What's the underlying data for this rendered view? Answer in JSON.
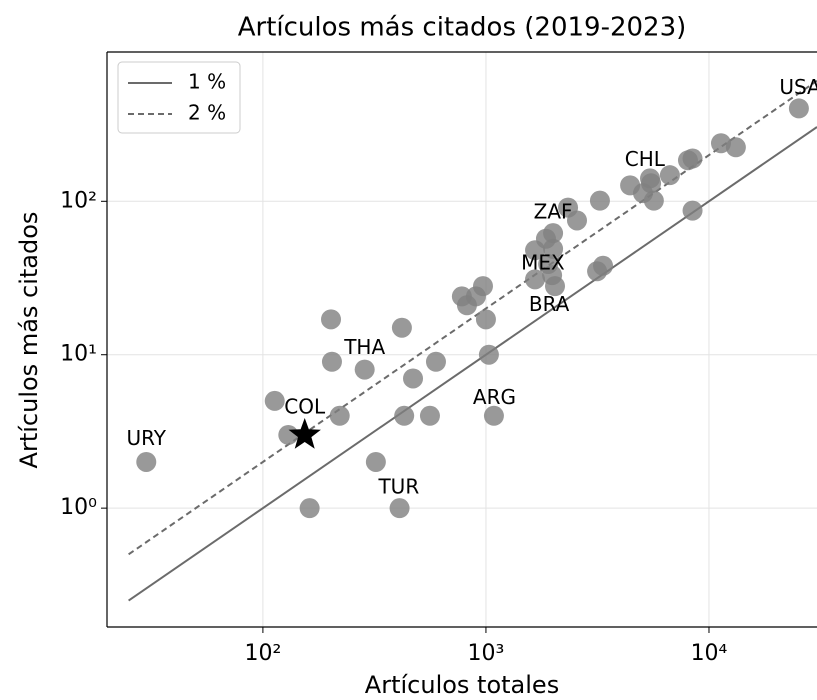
{
  "chart_data": {
    "type": "scatter",
    "title": "Artículos más citados (2019-2023)",
    "xlabel": "Artículos totales",
    "ylabel": "Artículos más citados",
    "xscale": "log",
    "yscale": "log",
    "xlim": [
      20,
      30500
    ],
    "ylim": [
      0.168,
      940
    ],
    "xticks": [
      {
        "value": 100,
        "label": "10²"
      },
      {
        "value": 1000,
        "label": "10³"
      },
      {
        "value": 10000,
        "label": "10⁴"
      }
    ],
    "yticks": [
      {
        "value": 1,
        "label": "10⁰"
      },
      {
        "value": 10,
        "label": "10¹"
      },
      {
        "value": 100,
        "label": "10²"
      }
    ],
    "grid": true,
    "legend": "upper left",
    "series": [
      {
        "name": "1 %",
        "type": "line",
        "dash": "solid",
        "color": "#6b6b6b",
        "x": [
          25,
          30500
        ],
        "values": [
          0.25,
          305
        ]
      },
      {
        "name": "2 %",
        "type": "line",
        "dash": "dashed",
        "color": "#6b6b6b",
        "x": [
          25,
          30500
        ],
        "values": [
          0.5,
          610
        ]
      }
    ],
    "points": {
      "color": "#808080",
      "x": [
        30,
        113,
        130,
        202,
        204,
        221,
        162,
        286,
        321,
        420,
        430,
        410,
        471,
        561,
        597,
        780,
        822,
        902,
        970,
        1000,
        1031,
        1086,
        1660,
        1660,
        1858,
        1900,
        2000,
        2000,
        1980,
        2040,
        2334,
        2560,
        3244,
        3150,
        3350,
        4430,
        5060,
        5440,
        5500,
        5660,
        6680,
        8050,
        8440,
        8440,
        11320,
        13200,
        25300
      ],
      "values": [
        2,
        5,
        3,
        17,
        9,
        4,
        1,
        8,
        2,
        15,
        4,
        1,
        7,
        4,
        9,
        24,
        21,
        24,
        28,
        17,
        10,
        4,
        48,
        31,
        57,
        39,
        62,
        49,
        33,
        28,
        91,
        75,
        101,
        35,
        38,
        127,
        113,
        141,
        131,
        101,
        148,
        185,
        190,
        87,
        239,
        225,
        403
      ]
    },
    "highlight": {
      "marker": "star",
      "color": "#000000",
      "x": [
        154
      ],
      "values": [
        3
      ]
    },
    "annotations": [
      {
        "text": "URY",
        "x": 30,
        "y": 2.8
      },
      {
        "text": "COL",
        "x": 154,
        "y": 4.5
      },
      {
        "text": "THA",
        "x": 286,
        "y": 11
      },
      {
        "text": "TUR",
        "x": 407,
        "y": 1.35
      },
      {
        "text": "ARG",
        "x": 1092,
        "y": 5.2
      },
      {
        "text": "BRA",
        "x": 1920,
        "y": 21
      },
      {
        "text": "MEX",
        "x": 1800,
        "y": 39
      },
      {
        "text": "ZAF",
        "x": 2000,
        "y": 84
      },
      {
        "text": "CHL",
        "x": 5160,
        "y": 185
      },
      {
        "text": "USA",
        "x": 25600,
        "y": 545
      }
    ]
  }
}
